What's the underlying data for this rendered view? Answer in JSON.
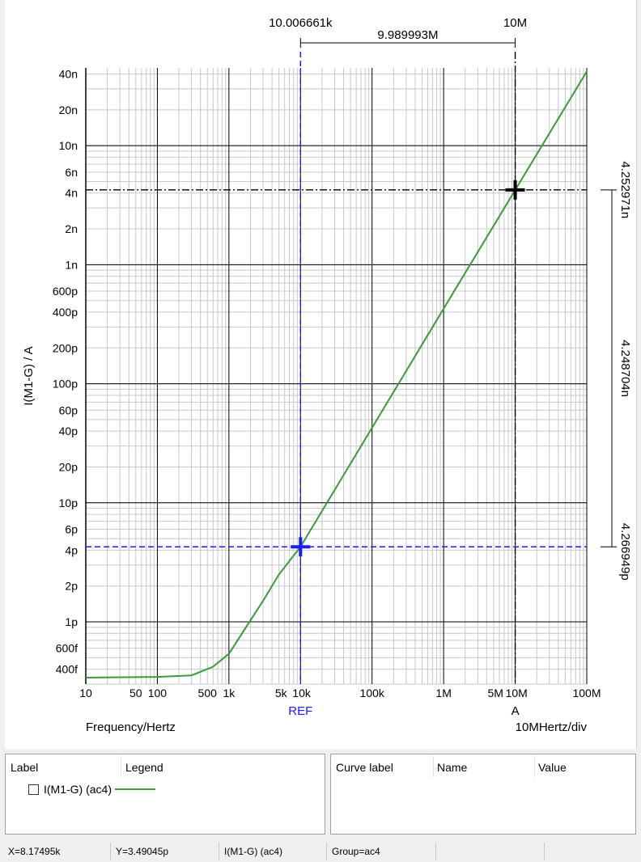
{
  "chart_data": {
    "type": "line",
    "x_scale": "log",
    "y_scale": "log",
    "xlim": [
      10,
      100000000
    ],
    "ylim": [
      3e-13,
      4.5e-08
    ],
    "grid": true,
    "xlabel": "Frequency/Hertz",
    "ylabel": "I(M1-G) / A",
    "x_tick_labels": [
      {
        "value": 10,
        "label": "10"
      },
      {
        "value": 50,
        "label": "50"
      },
      {
        "value": 100,
        "label": "100"
      },
      {
        "value": 500,
        "label": "500"
      },
      {
        "value": 1000,
        "label": "1k"
      },
      {
        "value": 5000,
        "label": "5k"
      },
      {
        "value": 10000,
        "label": "10k"
      },
      {
        "value": 100000,
        "label": "100k"
      },
      {
        "value": 1000000,
        "label": "1M"
      },
      {
        "value": 5000000,
        "label": "5M"
      },
      {
        "value": 10000000,
        "label": "10M"
      },
      {
        "value": 100000000,
        "label": "100M"
      }
    ],
    "y_tick_labels": [
      {
        "value": 4e-08,
        "label": "40n"
      },
      {
        "value": 2e-08,
        "label": "20n"
      },
      {
        "value": 1e-08,
        "label": "10n"
      },
      {
        "value": 6e-09,
        "label": "6n"
      },
      {
        "value": 4e-09,
        "label": "4n"
      },
      {
        "value": 2e-09,
        "label": "2n"
      },
      {
        "value": 1e-09,
        "label": "1n"
      },
      {
        "value": 6e-10,
        "label": "600p"
      },
      {
        "value": 4e-10,
        "label": "400p"
      },
      {
        "value": 2e-10,
        "label": "200p"
      },
      {
        "value": 1e-10,
        "label": "100p"
      },
      {
        "value": 6e-11,
        "label": "60p"
      },
      {
        "value": 4e-11,
        "label": "40p"
      },
      {
        "value": 2e-11,
        "label": "20p"
      },
      {
        "value": 1e-11,
        "label": "10p"
      },
      {
        "value": 6e-12,
        "label": "6p"
      },
      {
        "value": 4e-12,
        "label": "4p"
      },
      {
        "value": 2e-12,
        "label": "2p"
      },
      {
        "value": 1e-12,
        "label": "1p"
      },
      {
        "value": 6e-13,
        "label": "600f"
      },
      {
        "value": 4e-13,
        "label": "400f"
      }
    ],
    "series": [
      {
        "name": "I(M1-G) (ac4)",
        "color": "#3a9a3a",
        "x": [
          10,
          100,
          300,
          600,
          1000,
          2000,
          3000,
          5000,
          10000,
          100000,
          1000000,
          10000000,
          100000000
        ],
        "y": [
          3.4e-13,
          3.45e-13,
          3.55e-13,
          4.2e-13,
          5.4e-13,
          1.03e-12,
          1.5e-12,
          2.5e-12,
          4.27e-12,
          4.27e-11,
          4.27e-10,
          4.25e-09,
          4.2e-08
        ]
      }
    ],
    "cursors": {
      "ref": {
        "label": "REF",
        "x": 10006.661,
        "y": 4.266949e-12,
        "color": "#1a1aff"
      },
      "a": {
        "label": "A",
        "x": 10000000,
        "y": 4.252971e-09,
        "color": "#000000"
      },
      "x_readout_left": "10.006661k",
      "x_readout_right": "10M",
      "delta_x": "9.989993M",
      "y_readout_top": "4.252971n",
      "y_readout_bottom": "4.266949p",
      "delta_y": "4.248704n"
    },
    "x_div_label": "10MHertz/div"
  },
  "legend_panel": {
    "label_header": "Label",
    "legend_header": "Legend",
    "items": [
      {
        "label": "I(M1-G) (ac4)",
        "color": "#3a9a3a",
        "checked": false
      }
    ]
  },
  "curve_panel": {
    "curve_label_header": "Curve label",
    "name_header": "Name",
    "value_header": "Value"
  },
  "status_bar": {
    "x": "X=8.17495k",
    "y": "Y=3.49045p",
    "curve": "I(M1-G) (ac4)",
    "group": "Group=ac4"
  }
}
